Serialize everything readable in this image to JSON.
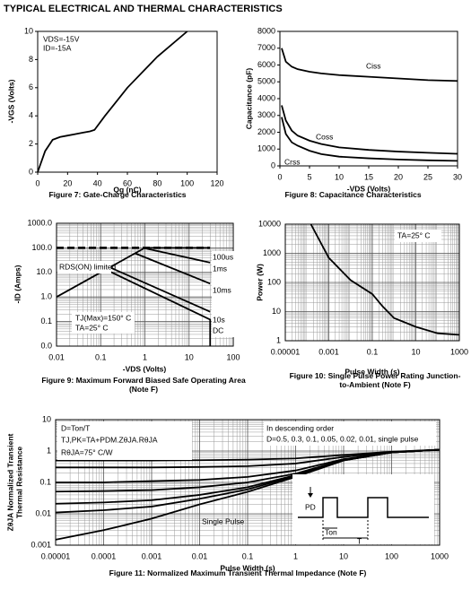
{
  "title": "TYPICAL ELECTRICAL AND THERMAL CHARACTERISTICS",
  "chart_data": [
    {
      "type": "line",
      "caption": "Figure 7: Gate-Charge Characteristics",
      "xlabel": "Qg (nC)",
      "ylabel": [
        "-VGS (Volts)"
      ],
      "annotations": [
        "VDS=-15V",
        "ID=-15A"
      ],
      "x": [
        0,
        5,
        10,
        15,
        20,
        25,
        30,
        35,
        38,
        45,
        60,
        80,
        100
      ],
      "series": [
        {
          "color": "#000000",
          "values": [
            0,
            1.5,
            2.3,
            2.5,
            2.6,
            2.7,
            2.8,
            2.9,
            3.0,
            4.0,
            6.0,
            8.2,
            10.0
          ]
        }
      ],
      "xlim": [
        0,
        120
      ],
      "xticks": [
        0,
        20,
        40,
        60,
        80,
        100,
        120
      ],
      "ylim": [
        0,
        10
      ],
      "yticks": [
        0,
        2,
        4,
        6,
        8,
        10
      ],
      "grid": false,
      "minor_grid": false
    },
    {
      "type": "line",
      "caption": "Figure 8: Capacitance Characteristics",
      "xlabel": "-VDS (Volts)",
      "ylabel": [
        "Capacitance (pF)"
      ],
      "annotations": [],
      "x": [
        0.3,
        1,
        2,
        3,
        5,
        7,
        10,
        15,
        20,
        25,
        30
      ],
      "series": [
        {
          "name": "Ciss",
          "color": "#000000",
          "values": [
            7000,
            6200,
            5900,
            5750,
            5600,
            5500,
            5400,
            5300,
            5200,
            5100,
            5050
          ]
        },
        {
          "name": "Coss",
          "color": "#000000",
          "values": [
            3600,
            2700,
            2100,
            1800,
            1500,
            1300,
            1100,
            950,
            850,
            780,
            720
          ]
        },
        {
          "name": "Crss",
          "color": "#000000",
          "values": [
            2900,
            1900,
            1400,
            1200,
            900,
            700,
            550,
            450,
            380,
            330,
            300
          ]
        }
      ],
      "xlim": [
        0,
        30
      ],
      "xticks": [
        0,
        5,
        10,
        15,
        20,
        25,
        30
      ],
      "ylim": [
        0,
        8000
      ],
      "yticks": [
        0,
        1000,
        2000,
        3000,
        4000,
        5000,
        6000,
        7000,
        8000
      ],
      "grid": false,
      "minor_grid": false
    },
    {
      "type": "line",
      "caption": "Figure 9: Maximum Forward Biased Safe Operating Area (Note F)",
      "xlabel": "-VDS (Volts)",
      "ylabel": [
        "-ID (Amps)"
      ],
      "annotations": [
        "TJ(Max)=150° C",
        "TA=25° C"
      ],
      "log_x": true,
      "log_y": true,
      "current_limit": 100,
      "series": [
        {
          "name": "RDS(ON) limited",
          "color": "#000000",
          "x": [
            0.01,
            1
          ],
          "values": [
            1,
            100
          ]
        },
        {
          "name": "100us",
          "color": "#000000",
          "x": [
            0.9,
            30
          ],
          "values": [
            100,
            100
          ]
        },
        {
          "name": "1ms",
          "color": "#000000",
          "x": [
            0.9,
            30
          ],
          "values": [
            100,
            25
          ]
        },
        {
          "name": "10ms",
          "color": "#000000",
          "x": [
            0.6,
            30
          ],
          "values": [
            60,
            3.5
          ]
        },
        {
          "name": "10s",
          "color": "#000000",
          "x": [
            0.15,
            30
          ],
          "values": [
            17,
            0.25
          ]
        },
        {
          "name": "DC",
          "color": "#000000",
          "x": [
            0.12,
            30,
            30
          ],
          "values": [
            14,
            0.12,
            0.01
          ]
        }
      ],
      "xlim": [
        0.01,
        100
      ],
      "xticks": [
        0.01,
        0.1,
        1,
        10,
        100
      ],
      "ylim": [
        0.01,
        1000
      ],
      "yticks": [
        {
          "value": 0.01,
          "label": "0.0"
        },
        {
          "value": 0.1,
          "label": "0.1"
        },
        {
          "value": 1,
          "label": "1.0"
        },
        {
          "value": 10,
          "label": "10.0"
        },
        {
          "value": 100,
          "label": "100.0"
        },
        {
          "value": 1000,
          "label": "1000.0"
        }
      ],
      "grid": true,
      "minor_grid": true
    },
    {
      "type": "line",
      "caption": "Figure 10: Single Pulse Power Rating Junction-to-Ambient (Note F)",
      "xlabel": "Pulse Width (s)",
      "ylabel": [
        "Power (W)"
      ],
      "annotations": [
        "TA=25° C"
      ],
      "log_x": true,
      "log_y": true,
      "x": [
        0.00015,
        0.001,
        0.01,
        0.1,
        0.3,
        1,
        10,
        100,
        1000
      ],
      "series": [
        {
          "color": "#000000",
          "values": [
            10000,
            700,
            120,
            40,
            15,
            6,
            3,
            1.8,
            1.6
          ]
        }
      ],
      "xlim": [
        1e-05,
        1000
      ],
      "xticks": [
        1e-05,
        0.001,
        0.1,
        10,
        1000
      ],
      "ylim": [
        1,
        10000
      ],
      "yticks": [
        1,
        10,
        100,
        1000,
        10000
      ],
      "grid": true,
      "minor_grid": true
    },
    {
      "type": "line",
      "caption": "Figure 11: Normalized Maximum Transient Thermal Impedance (Note F)",
      "xlabel": "Pulse Width (s)",
      "ylabel": [
        "ZθJA Normalized Transient",
        "Thermal Resistance"
      ],
      "annotations": [
        "D=Ton/T",
        "TJ,PK=TA+PDM.ZθJA.RθJA",
        "RθJA=75° C/W",
        "In descending order",
        "D=0.5, 0.3, 0.1, 0.05, 0.02, 0.01, single pulse"
      ],
      "inset_labels": [
        "PD",
        "Ton",
        "T"
      ],
      "log_x": true,
      "log_y": true,
      "x": [
        1e-05,
        0.0001,
        0.001,
        0.01,
        0.1,
        1,
        10,
        100,
        1000
      ],
      "series": [
        {
          "color": "#000000",
          "values": [
            0.5,
            0.5,
            0.5,
            0.51,
            0.53,
            0.58,
            0.75,
            0.95,
            1.1
          ]
        },
        {
          "color": "#000000",
          "values": [
            0.3,
            0.3,
            0.3,
            0.31,
            0.33,
            0.4,
            0.65,
            0.93,
            1.1
          ]
        },
        {
          "color": "#000000",
          "values": [
            0.1,
            0.1,
            0.11,
            0.12,
            0.15,
            0.24,
            0.55,
            0.91,
            1.1
          ]
        },
        {
          "color": "#000000",
          "values": [
            0.051,
            0.053,
            0.057,
            0.07,
            0.1,
            0.19,
            0.52,
            0.9,
            1.1
          ]
        },
        {
          "color": "#000000",
          "values": [
            0.021,
            0.023,
            0.027,
            0.04,
            0.07,
            0.17,
            0.51,
            0.9,
            1.1
          ]
        },
        {
          "color": "#000000",
          "values": [
            0.011,
            0.013,
            0.017,
            0.03,
            0.06,
            0.16,
            0.5,
            0.9,
            1.1
          ]
        },
        {
          "name": "Single Pulse",
          "color": "#000000",
          "values": [
            0.0015,
            0.003,
            0.007,
            0.02,
            0.05,
            0.15,
            0.5,
            0.9,
            1.1
          ]
        }
      ],
      "xlim": [
        1e-05,
        1000
      ],
      "xticks": [
        1e-05,
        0.0001,
        0.001,
        0.01,
        0.1,
        1,
        10,
        100,
        1000
      ],
      "ylim": [
        0.001,
        10
      ],
      "yticks": [
        0.001,
        0.01,
        0.1,
        1,
        10
      ],
      "grid": true,
      "minor_grid": true
    }
  ]
}
